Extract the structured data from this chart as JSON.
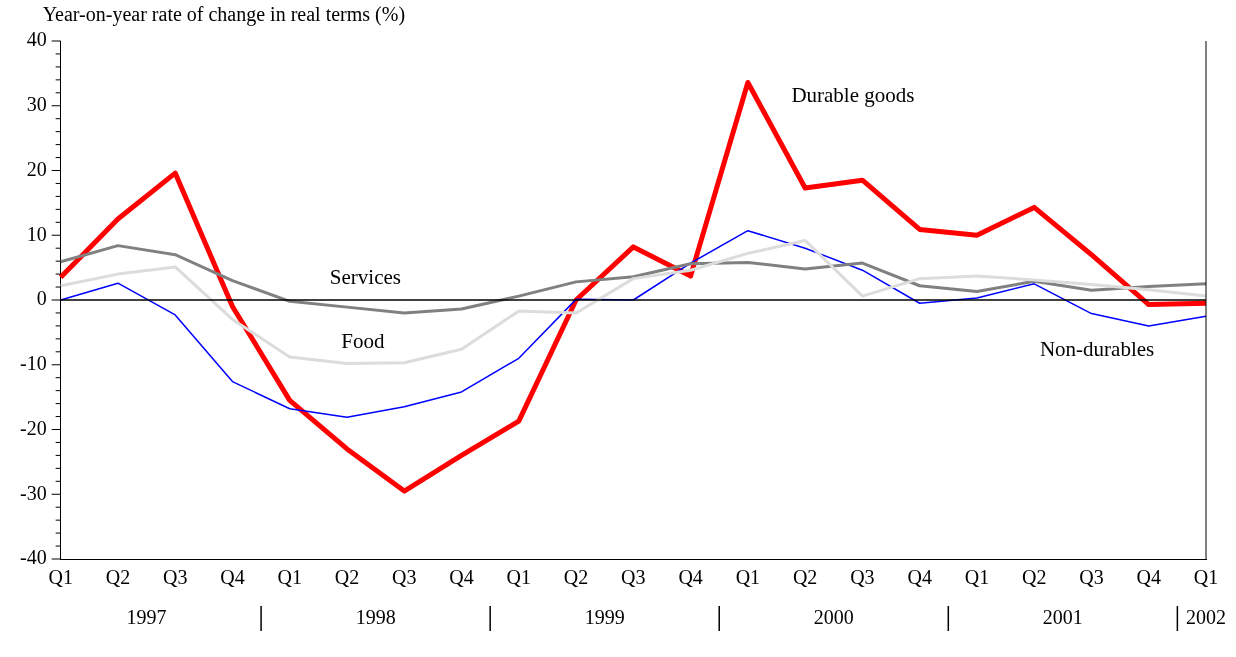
{
  "chart_data": {
    "type": "line",
    "ylabel": "Year-on-year rate of change in real terms (%)",
    "categories": [
      "Q1",
      "Q2",
      "Q3",
      "Q4",
      "Q1",
      "Q2",
      "Q3",
      "Q4",
      "Q1",
      "Q2",
      "Q3",
      "Q4",
      "Q1",
      "Q2",
      "Q3",
      "Q4",
      "Q1",
      "Q2",
      "Q3",
      "Q4",
      "Q1"
    ],
    "annotations": [
      "1997",
      "1998",
      "1999",
      "2000",
      "2001",
      "2002"
    ],
    "series": [
      {
        "name": "Food",
        "color": "#dcdcdc",
        "values": [
          2.2,
          4,
          5.1,
          -3,
          -8.8,
          -9.8,
          -9.7,
          -7.6,
          -1.7,
          -2,
          3.3,
          4.6,
          7.2,
          9.2,
          0.6,
          3.3,
          3.7,
          3.1,
          2.4,
          1.6,
          0.6
        ]
      },
      {
        "name": "Services",
        "color": "#808080",
        "values": [
          5.9,
          8.4,
          7,
          3,
          -0.2,
          -1.1,
          -2,
          -1.4,
          0.6,
          2.8,
          3.6,
          5.6,
          5.8,
          4.8,
          5.7,
          2.2,
          1.3,
          2.9,
          1.5,
          2.1,
          2.5
        ]
      },
      {
        "name": "Non-durables",
        "color": "#0000ff",
        "values": [
          0,
          2.6,
          -2.3,
          -12.6,
          -16.8,
          -18.1,
          -16.5,
          -14.2,
          -9,
          0.1,
          0,
          5.7,
          10.7,
          8,
          4.6,
          -0.5,
          0.3,
          2.5,
          -2.1,
          -4,
          -2.5
        ]
      },
      {
        "name": "Durable goods",
        "color": "#ff0000",
        "values": [
          3.5,
          12.5,
          19.6,
          -1,
          -15.5,
          -23,
          -29.5,
          -24,
          -18.7,
          0,
          8.2,
          3.7,
          33.6,
          17.3,
          18.5,
          10.9,
          10,
          14.3,
          7,
          -0.7,
          -0.5
        ]
      }
    ],
    "ylim": [
      -40,
      40
    ],
    "yticks": [
      -40,
      {
        "value": -38,
        "label": null
      },
      {
        "value": -36,
        "label": null
      },
      {
        "value": -34,
        "label": null
      },
      {
        "value": -32,
        "label": null
      },
      -30,
      {
        "value": -28,
        "label": null
      },
      {
        "value": -26,
        "label": null
      },
      {
        "value": -24,
        "label": null
      },
      {
        "value": -22,
        "label": null
      },
      -20,
      {
        "value": -18,
        "label": null
      },
      {
        "value": -16,
        "label": null
      },
      {
        "value": -14,
        "label": null
      },
      {
        "value": -12,
        "label": null
      },
      -10,
      {
        "value": -8,
        "label": null
      },
      {
        "value": -6,
        "label": null
      },
      {
        "value": -4,
        "label": null
      },
      {
        "value": -2,
        "label": null
      },
      0,
      {
        "value": 2,
        "label": null
      },
      {
        "value": 4,
        "label": null
      },
      {
        "value": 6,
        "label": null
      },
      {
        "value": 8,
        "label": null
      },
      10,
      {
        "value": 12,
        "label": null
      },
      {
        "value": 14,
        "label": null
      },
      {
        "value": 16,
        "label": null
      },
      {
        "value": 18,
        "label": null
      },
      20,
      {
        "value": 22,
        "label": null
      },
      {
        "value": 24,
        "label": null
      },
      {
        "value": 26,
        "label": null
      },
      {
        "value": 28,
        "label": null
      },
      30,
      {
        "value": 32,
        "label": null
      },
      {
        "value": 34,
        "label": null
      },
      {
        "value": 36,
        "label": null
      },
      {
        "value": 38,
        "label": null
      },
      40
    ],
    "ref_lines": [
      {
        "axis": "y",
        "value": 0,
        "color": "#000000"
      }
    ],
    "grid": false,
    "legend": false,
    "marker": "none",
    "line_style": "solid"
  }
}
